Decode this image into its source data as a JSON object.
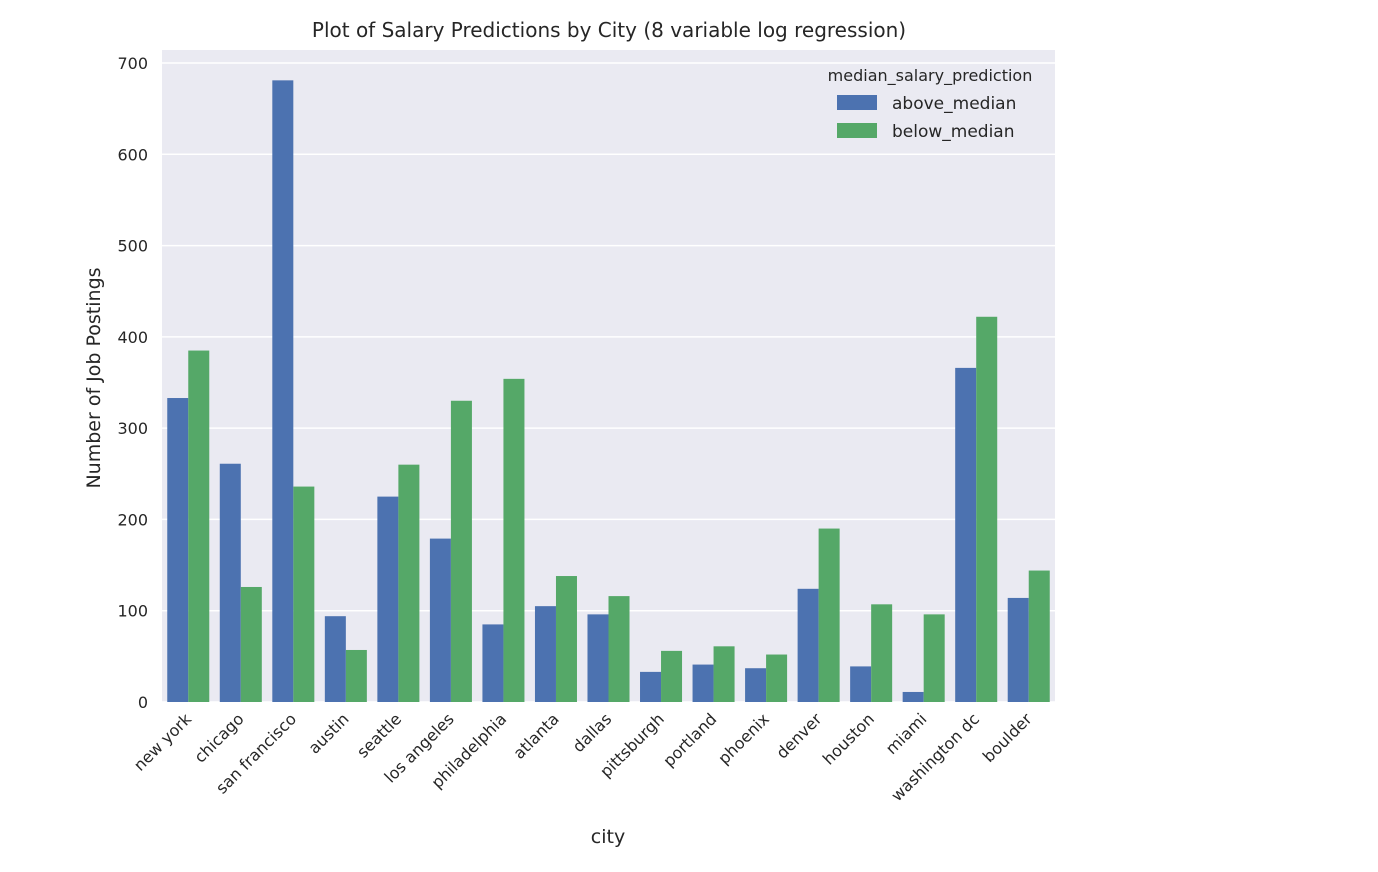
{
  "chart_data": {
    "type": "bar",
    "title": "Plot of Salary Predictions by City (8 variable log regression)",
    "xlabel": "city",
    "ylabel": "Number of Job Postings",
    "ylim": [
      0,
      710
    ],
    "yticks": [
      0,
      100,
      200,
      300,
      400,
      500,
      600,
      700
    ],
    "grid": true,
    "legend": {
      "title": "median_salary_prediction",
      "placement": "top-right"
    },
    "categories": [
      "new york",
      "chicago",
      "san francisco",
      "austin",
      "seattle",
      "los angeles",
      "philadelphia",
      "atlanta",
      "dallas",
      "pittsburgh",
      "portland",
      "phoenix",
      "denver",
      "houston",
      "miami",
      "washington dc",
      "boulder"
    ],
    "series": [
      {
        "name": "above_median",
        "color": "#4c72b0",
        "values": [
          333,
          261,
          681,
          94,
          225,
          179,
          85,
          105,
          96,
          33,
          41,
          37,
          124,
          39,
          11,
          366,
          114
        ]
      },
      {
        "name": "below_median",
        "color": "#55a868",
        "values": [
          385,
          126,
          236,
          57,
          260,
          330,
          354,
          138,
          116,
          56,
          61,
          52,
          190,
          107,
          96,
          422,
          144
        ]
      }
    ]
  }
}
